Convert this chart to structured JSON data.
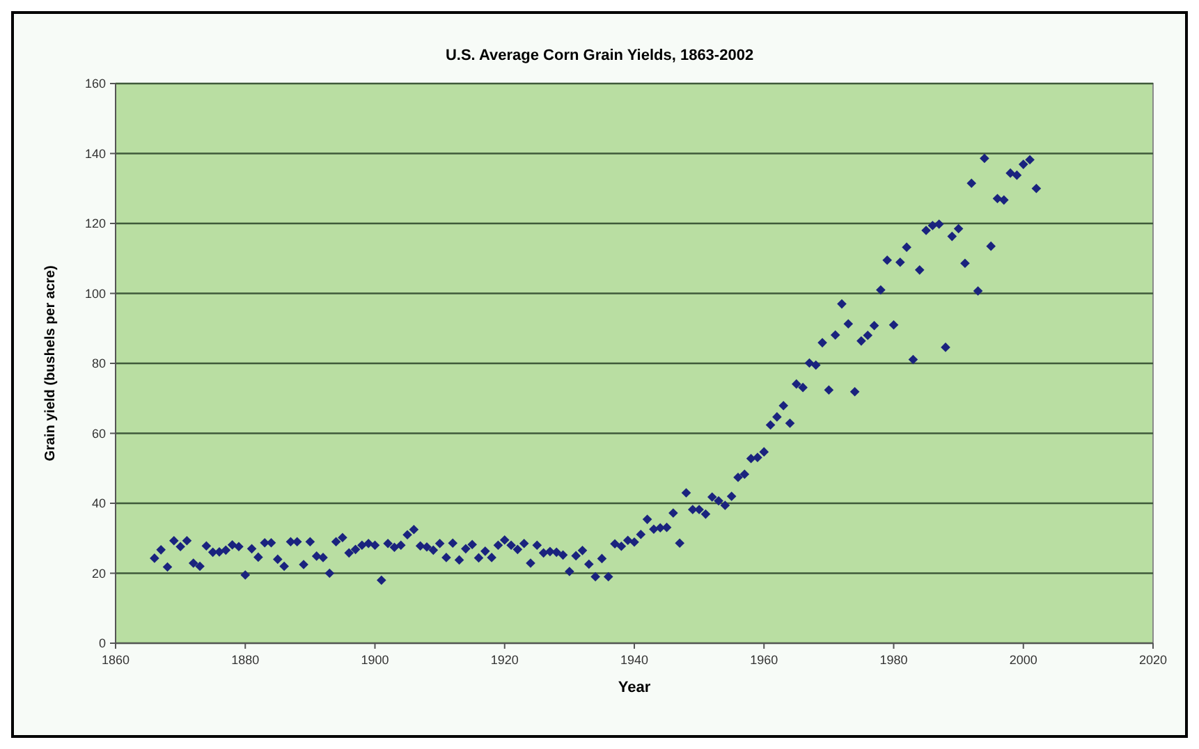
{
  "chart_data": {
    "type": "scatter",
    "title": "U.S. Average Corn Grain Yields, 1863-2002",
    "xlabel": "Year",
    "ylabel": "Grain yield (bushels per acre)",
    "xlim": [
      1860,
      2020
    ],
    "xticks": [
      1860,
      1880,
      1900,
      1920,
      1940,
      1960,
      1980,
      2000,
      2020
    ],
    "ylim": [
      0,
      160
    ],
    "yticks": [
      0,
      20,
      40,
      60,
      80,
      100,
      120,
      140,
      160
    ],
    "grid": "y",
    "marker": "diamond",
    "series": [
      {
        "color": "#1a237e",
        "x": [
          1866,
          1867,
          1868,
          1869,
          1870,
          1871,
          1872,
          1873,
          1874,
          1875,
          1876,
          1877,
          1878,
          1879,
          1880,
          1881,
          1882,
          1883,
          1884,
          1885,
          1886,
          1887,
          1888,
          1889,
          1890,
          1891,
          1892,
          1893,
          1894,
          1895,
          1896,
          1897,
          1898,
          1899,
          1900,
          1901,
          1902,
          1903,
          1904,
          1905,
          1906,
          1907,
          1908,
          1909,
          1910,
          1911,
          1912,
          1913,
          1914,
          1915,
          1916,
          1917,
          1918,
          1919,
          1920,
          1921,
          1922,
          1923,
          1924,
          1925,
          1926,
          1927,
          1928,
          1929,
          1930,
          1931,
          1932,
          1933,
          1934,
          1935,
          1936,
          1937,
          1938,
          1939,
          1940,
          1941,
          1942,
          1943,
          1944,
          1945,
          1946,
          1947,
          1948,
          1949,
          1950,
          1951,
          1952,
          1953,
          1954,
          1955,
          1956,
          1957,
          1958,
          1959,
          1960,
          1961,
          1962,
          1963,
          1964,
          1965,
          1966,
          1967,
          1968,
          1969,
          1970,
          1971,
          1972,
          1973,
          1974,
          1975,
          1976,
          1977,
          1978,
          1979,
          1980,
          1981,
          1982,
          1983,
          1984,
          1985,
          1986,
          1987,
          1988,
          1989,
          1990,
          1991,
          1992,
          1993,
          1994,
          1995,
          1996,
          1997,
          1998,
          1999,
          2000,
          2001,
          2002
        ],
        "values": [
          24.3,
          26.7,
          21.8,
          29.3,
          27.6,
          29.3,
          22.9,
          22,
          27.8,
          26,
          26.1,
          26.6,
          28.1,
          27.6,
          19.5,
          27,
          24.6,
          28.7,
          28.7,
          24,
          22,
          29,
          29,
          22.5,
          29,
          24.9,
          24.5,
          20,
          29,
          30.2,
          25.8,
          26.8,
          28,
          28.5,
          28,
          18,
          28.5,
          27.4,
          28,
          31,
          32.5,
          27.8,
          27.5,
          26.6,
          28.5,
          24.5,
          28.6,
          23.8,
          27,
          28.2,
          24.4,
          26.3,
          24.5,
          28,
          29.5,
          28,
          26.8,
          28.5,
          22.9,
          28,
          25.8,
          26.2,
          26,
          25.2,
          20.5,
          25,
          26.5,
          22.6,
          19,
          24.2,
          19,
          28.4,
          27.7,
          29.4,
          28.9,
          31.1,
          35.4,
          32.6,
          33,
          33.1,
          37.2,
          28.6,
          43,
          38.2,
          38.2,
          36.9,
          41.8,
          40.7,
          39.4,
          42,
          47.4,
          48.3,
          52.8,
          53.1,
          54.7,
          62.4,
          64.7,
          67.9,
          62.9,
          74.1,
          73.1,
          80.1,
          79.5,
          85.9,
          72.4,
          88.1,
          97,
          91.3,
          71.9,
          86.4,
          88,
          90.8,
          101,
          109.5,
          91,
          108.9,
          113.2,
          81.1,
          106.7,
          118,
          119.4,
          119.8,
          84.6,
          116.3,
          118.5,
          108.6,
          131.5,
          100.7,
          138.6,
          113.5,
          127.1,
          126.7,
          134.4,
          133.8,
          136.9,
          138.2,
          130
        ]
      }
    ]
  }
}
